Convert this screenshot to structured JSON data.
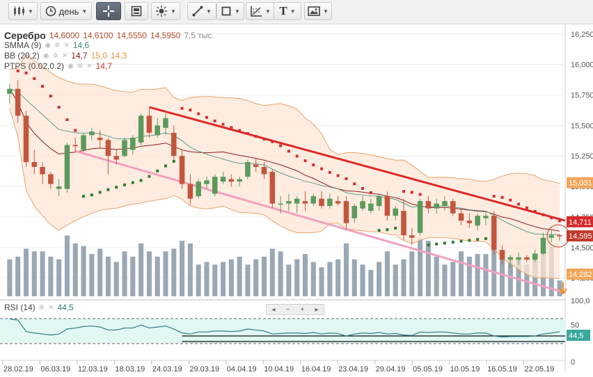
{
  "toolbar": {
    "period_label": "день",
    "buttons": [
      "candles-icon",
      "period-selector",
      "crosshair-icon",
      "screenshot-icon",
      "indicators-icon",
      "line-tool-icon",
      "shape-tool-icon",
      "fib-tool-icon",
      "text-tool-icon",
      "image-tool-icon"
    ]
  },
  "legend": {
    "symbol": "Серебро",
    "open": "14,6000",
    "high": "14,6100",
    "low": "14,5550",
    "close": "14,5950",
    "volume": "7,5 тыс.",
    "smma_name": "SMMA (9)",
    "smma_value": "14,6",
    "bb_name": "BB (20,2)",
    "bb_mid": "14,7",
    "bb_upper": "15,0",
    "bb_lower": "14,3",
    "ptps_name": "PTPS (0.02,0.2)",
    "ptps_value": "14,7",
    "rsi_name": "RSI (14)",
    "rsi_value": "44,5"
  },
  "price_axis": {
    "labels": [
      "16,250",
      "16,000",
      "15,750",
      "15,500",
      "15,250",
      "15,000",
      "14,750",
      "14,500",
      "14,250"
    ],
    "badges": [
      {
        "text": "15,031",
        "color": "#f2a65a"
      },
      {
        "text": "14,711",
        "color": "#d42a2a"
      },
      {
        "text": "14,595",
        "color": "#c0392b"
      },
      {
        "text": "14,282",
        "color": "#f2a65a"
      }
    ]
  },
  "rsi_axis": {
    "labels": [
      "100,0",
      "50",
      "0"
    ],
    "badge": "44,5"
  },
  "date_axis": [
    "28.02.19",
    "06.03.19",
    "12.03.19",
    "18.03.19",
    "24.03.19",
    "29.03.19",
    "04.04.19",
    "10.04.19",
    "16.04.19",
    "23.04.19",
    "29.04.19",
    "05.05.19",
    "10.05.19",
    "16.05.19",
    "22.05.19"
  ],
  "navigator": {
    "left": "◂",
    "minus": "−",
    "plus": "+",
    "right": "▸"
  },
  "colors": {
    "up": "#5c9a5c",
    "down": "#c4553d",
    "bb_fill": "#fde6d6",
    "bb_line": "#e8a36a",
    "ptps_up": "#2e7d32",
    "ptps_down": "#d32f2f",
    "trend_red": "#e02828",
    "trend_pink": "#f2a0c0",
    "smma": "#5d9a8a",
    "volume": "#9aa7b4",
    "rsi_line": "#2e7d7d",
    "rsi_fill": "#e0f7f4"
  },
  "chart_data": {
    "type": "candlestick",
    "title": "Серебро",
    "ylim": [
      14.1,
      16.3
    ],
    "candles": [
      {
        "o": 15.76,
        "h": 15.84,
        "l": 15.68,
        "c": 15.8
      },
      {
        "o": 15.8,
        "h": 15.87,
        "l": 15.52,
        "c": 15.58
      },
      {
        "o": 15.58,
        "h": 15.62,
        "l": 15.16,
        "c": 15.2
      },
      {
        "o": 15.2,
        "h": 15.3,
        "l": 15.1,
        "c": 15.16
      },
      {
        "o": 15.16,
        "h": 15.2,
        "l": 15.02,
        "c": 15.1
      },
      {
        "o": 15.1,
        "h": 15.12,
        "l": 14.98,
        "c": 15.02
      },
      {
        "o": 14.98,
        "h": 15.06,
        "l": 14.92,
        "c": 15.0
      },
      {
        "o": 14.98,
        "h": 15.36,
        "l": 14.95,
        "c": 15.34
      },
      {
        "o": 15.34,
        "h": 15.4,
        "l": 15.28,
        "c": 15.33
      },
      {
        "o": 15.3,
        "h": 15.44,
        "l": 15.28,
        "c": 15.42
      },
      {
        "o": 15.42,
        "h": 15.48,
        "l": 15.38,
        "c": 15.45
      },
      {
        "o": 15.4,
        "h": 15.46,
        "l": 15.32,
        "c": 15.38
      },
      {
        "o": 15.38,
        "h": 15.4,
        "l": 15.1,
        "c": 15.25
      },
      {
        "o": 15.25,
        "h": 15.3,
        "l": 15.18,
        "c": 15.22
      },
      {
        "o": 15.25,
        "h": 15.4,
        "l": 15.24,
        "c": 15.38
      },
      {
        "o": 15.3,
        "h": 15.42,
        "l": 15.26,
        "c": 15.4
      },
      {
        "o": 15.36,
        "h": 15.6,
        "l": 15.34,
        "c": 15.58
      },
      {
        "o": 15.58,
        "h": 15.64,
        "l": 15.4,
        "c": 15.44
      },
      {
        "o": 15.42,
        "h": 15.56,
        "l": 15.4,
        "c": 15.5
      },
      {
        "o": 15.48,
        "h": 15.6,
        "l": 15.42,
        "c": 15.56
      },
      {
        "o": 15.44,
        "h": 15.5,
        "l": 15.22,
        "c": 15.25
      },
      {
        "o": 15.25,
        "h": 15.3,
        "l": 14.98,
        "c": 15.02
      },
      {
        "o": 15.02,
        "h": 15.1,
        "l": 14.85,
        "c": 14.9
      },
      {
        "o": 14.92,
        "h": 15.06,
        "l": 14.9,
        "c": 15.04
      },
      {
        "o": 15.02,
        "h": 15.08,
        "l": 14.98,
        "c": 15.05
      },
      {
        "o": 14.94,
        "h": 15.1,
        "l": 14.92,
        "c": 15.08
      },
      {
        "o": 15.04,
        "h": 15.12,
        "l": 15.02,
        "c": 15.08
      },
      {
        "o": 15.06,
        "h": 15.1,
        "l": 15.0,
        "c": 15.04
      },
      {
        "o": 15.04,
        "h": 15.08,
        "l": 15.0,
        "c": 15.06
      },
      {
        "o": 15.08,
        "h": 15.22,
        "l": 15.06,
        "c": 15.2
      },
      {
        "o": 15.18,
        "h": 15.24,
        "l": 15.12,
        "c": 15.16
      },
      {
        "o": 15.16,
        "h": 15.2,
        "l": 15.06,
        "c": 15.1
      },
      {
        "o": 15.12,
        "h": 15.14,
        "l": 14.82,
        "c": 14.86
      },
      {
        "o": 14.86,
        "h": 14.92,
        "l": 14.78,
        "c": 14.86
      },
      {
        "o": 14.86,
        "h": 14.94,
        "l": 14.8,
        "c": 14.88
      },
      {
        "o": 14.86,
        "h": 14.92,
        "l": 14.78,
        "c": 14.9
      },
      {
        "o": 14.88,
        "h": 14.96,
        "l": 14.8,
        "c": 14.86
      },
      {
        "o": 14.86,
        "h": 14.94,
        "l": 14.84,
        "c": 14.92
      },
      {
        "o": 14.9,
        "h": 14.96,
        "l": 14.82,
        "c": 14.84
      },
      {
        "o": 14.84,
        "h": 14.94,
        "l": 14.82,
        "c": 14.9
      },
      {
        "o": 14.88,
        "h": 14.92,
        "l": 14.84,
        "c": 14.86
      },
      {
        "o": 14.88,
        "h": 14.92,
        "l": 14.64,
        "c": 14.7
      },
      {
        "o": 14.74,
        "h": 14.86,
        "l": 14.7,
        "c": 14.84
      },
      {
        "o": 14.82,
        "h": 14.92,
        "l": 14.8,
        "c": 14.88
      },
      {
        "o": 14.8,
        "h": 14.9,
        "l": 14.78,
        "c": 14.86
      },
      {
        "o": 14.84,
        "h": 14.94,
        "l": 14.8,
        "c": 14.92
      },
      {
        "o": 14.92,
        "h": 14.96,
        "l": 14.72,
        "c": 14.76
      },
      {
        "o": 14.76,
        "h": 14.84,
        "l": 14.72,
        "c": 14.82
      },
      {
        "o": 14.8,
        "h": 14.9,
        "l": 14.56,
        "c": 14.6
      },
      {
        "o": 14.6,
        "h": 14.66,
        "l": 14.52,
        "c": 14.58
      },
      {
        "o": 14.62,
        "h": 14.9,
        "l": 14.6,
        "c": 14.88
      },
      {
        "o": 14.88,
        "h": 14.92,
        "l": 14.78,
        "c": 14.82
      },
      {
        "o": 14.82,
        "h": 14.9,
        "l": 14.78,
        "c": 14.86
      },
      {
        "o": 14.84,
        "h": 14.92,
        "l": 14.8,
        "c": 14.88
      },
      {
        "o": 14.88,
        "h": 14.9,
        "l": 14.76,
        "c": 14.78
      },
      {
        "o": 14.78,
        "h": 14.82,
        "l": 14.68,
        "c": 14.72
      },
      {
        "o": 14.72,
        "h": 14.78,
        "l": 14.66,
        "c": 14.7
      },
      {
        "o": 14.68,
        "h": 14.78,
        "l": 14.64,
        "c": 14.76
      },
      {
        "o": 14.74,
        "h": 14.8,
        "l": 14.68,
        "c": 14.76
      },
      {
        "o": 14.76,
        "h": 14.8,
        "l": 14.44,
        "c": 14.48
      },
      {
        "o": 14.48,
        "h": 14.52,
        "l": 14.36,
        "c": 14.4
      },
      {
        "o": 14.4,
        "h": 14.44,
        "l": 14.34,
        "c": 14.42
      },
      {
        "o": 14.4,
        "h": 14.46,
        "l": 14.36,
        "c": 14.42
      },
      {
        "o": 14.42,
        "h": 14.44,
        "l": 14.38,
        "c": 14.4
      },
      {
        "o": 14.4,
        "h": 14.48,
        "l": 14.38,
        "c": 14.45
      },
      {
        "o": 14.45,
        "h": 14.62,
        "l": 14.44,
        "c": 14.58
      },
      {
        "o": 14.58,
        "h": 14.64,
        "l": 14.54,
        "c": 14.6
      },
      {
        "o": 14.6,
        "h": 14.61,
        "l": 14.555,
        "c": 14.595
      }
    ],
    "volume": [
      28,
      30,
      36,
      34,
      34,
      30,
      28,
      46,
      40,
      38,
      32,
      36,
      30,
      26,
      34,
      30,
      40,
      34,
      30,
      34,
      36,
      42,
      40,
      24,
      26,
      24,
      26,
      28,
      30,
      24,
      28,
      30,
      36,
      34,
      24,
      28,
      32,
      26,
      22,
      26,
      28,
      40,
      28,
      24,
      20,
      26,
      34,
      24,
      28,
      34,
      44,
      42,
      30,
      24,
      26,
      34,
      30,
      32,
      32,
      40,
      34,
      30,
      28,
      24,
      30,
      36,
      38,
      12
    ],
    "rsi": [
      70,
      68,
      45,
      42,
      40,
      38,
      40,
      50,
      52,
      55,
      56,
      54,
      48,
      48,
      52,
      52,
      58,
      52,
      54,
      56,
      50,
      42,
      40,
      44,
      44,
      46,
      46,
      45,
      46,
      50,
      48,
      46,
      40,
      41,
      42,
      42,
      41,
      43,
      40,
      42,
      41,
      36,
      40,
      42,
      41,
      43,
      40,
      41,
      38,
      37,
      44,
      43,
      44,
      44,
      42,
      40,
      40,
      42,
      42,
      36,
      34,
      35,
      35,
      35,
      36,
      40,
      42,
      44.5
    ]
  }
}
